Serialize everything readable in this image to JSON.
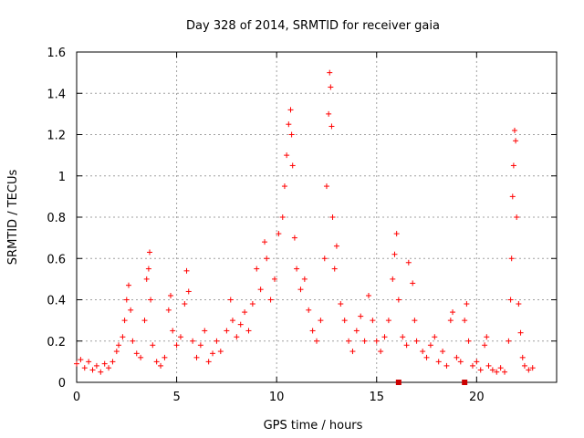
{
  "chart_data": {
    "type": "scatter",
    "title": "Day 328 of 2014, SRMTID for receiver gaia",
    "xlabel": "GPS time / hours",
    "ylabel": "SRMTID / TECUs",
    "xlim": [
      0,
      24
    ],
    "ylim": [
      0,
      1.6
    ],
    "xticks": [
      0,
      5,
      10,
      15,
      20
    ],
    "xtick_labels": [
      "0",
      "5",
      "10",
      "15",
      "20"
    ],
    "yticks": [
      0,
      0.2,
      0.4,
      0.6,
      0.8,
      1.0,
      1.2,
      1.4,
      1.6
    ],
    "ytick_labels": [
      "0",
      "0.2",
      "0.4",
      "0.6",
      "0.8",
      "1",
      "1.2",
      "1.4",
      "1.6"
    ],
    "grid": true,
    "marker": "+",
    "color": "#ff0000",
    "series": [
      {
        "name": "SRMTID",
        "points": [
          [
            0.0,
            0.09
          ],
          [
            0.2,
            0.11
          ],
          [
            0.4,
            0.07
          ],
          [
            0.6,
            0.1
          ],
          [
            0.8,
            0.06
          ],
          [
            1.0,
            0.08
          ],
          [
            1.2,
            0.05
          ],
          [
            1.4,
            0.09
          ],
          [
            1.6,
            0.07
          ],
          [
            1.8,
            0.1
          ],
          [
            2.0,
            0.15
          ],
          [
            2.1,
            0.18
          ],
          [
            2.3,
            0.22
          ],
          [
            2.4,
            0.3
          ],
          [
            2.5,
            0.4
          ],
          [
            2.6,
            0.47
          ],
          [
            2.7,
            0.35
          ],
          [
            2.8,
            0.2
          ],
          [
            3.0,
            0.14
          ],
          [
            3.2,
            0.12
          ],
          [
            3.4,
            0.3
          ],
          [
            3.5,
            0.5
          ],
          [
            3.6,
            0.55
          ],
          [
            3.65,
            0.63
          ],
          [
            3.7,
            0.4
          ],
          [
            3.8,
            0.18
          ],
          [
            4.0,
            0.1
          ],
          [
            4.2,
            0.08
          ],
          [
            4.4,
            0.12
          ],
          [
            4.6,
            0.35
          ],
          [
            4.7,
            0.42
          ],
          [
            4.8,
            0.25
          ],
          [
            5.0,
            0.18
          ],
          [
            5.2,
            0.22
          ],
          [
            5.4,
            0.38
          ],
          [
            5.5,
            0.54
          ],
          [
            5.6,
            0.44
          ],
          [
            5.8,
            0.2
          ],
          [
            6.0,
            0.12
          ],
          [
            6.2,
            0.18
          ],
          [
            6.4,
            0.25
          ],
          [
            6.6,
            0.1
          ],
          [
            6.8,
            0.14
          ],
          [
            7.0,
            0.2
          ],
          [
            7.2,
            0.15
          ],
          [
            7.5,
            0.25
          ],
          [
            7.7,
            0.4
          ],
          [
            7.8,
            0.3
          ],
          [
            8.0,
            0.22
          ],
          [
            8.2,
            0.28
          ],
          [
            8.4,
            0.34
          ],
          [
            8.6,
            0.25
          ],
          [
            8.8,
            0.38
          ],
          [
            9.0,
            0.55
          ],
          [
            9.2,
            0.45
          ],
          [
            9.4,
            0.68
          ],
          [
            9.5,
            0.6
          ],
          [
            9.7,
            0.4
          ],
          [
            9.9,
            0.5
          ],
          [
            10.1,
            0.72
          ],
          [
            10.3,
            0.8
          ],
          [
            10.4,
            0.95
          ],
          [
            10.5,
            1.1
          ],
          [
            10.6,
            1.25
          ],
          [
            10.7,
            1.32
          ],
          [
            10.75,
            1.2
          ],
          [
            10.8,
            1.05
          ],
          [
            10.9,
            0.7
          ],
          [
            11.0,
            0.55
          ],
          [
            11.2,
            0.45
          ],
          [
            11.4,
            0.5
          ],
          [
            11.6,
            0.35
          ],
          [
            11.8,
            0.25
          ],
          [
            12.0,
            0.2
          ],
          [
            12.2,
            0.3
          ],
          [
            12.4,
            0.6
          ],
          [
            12.5,
            0.95
          ],
          [
            12.6,
            1.3
          ],
          [
            12.65,
            1.5
          ],
          [
            12.7,
            1.43
          ],
          [
            12.75,
            1.24
          ],
          [
            12.8,
            0.8
          ],
          [
            12.9,
            0.55
          ],
          [
            13.0,
            0.66
          ],
          [
            13.2,
            0.38
          ],
          [
            13.4,
            0.3
          ],
          [
            13.6,
            0.2
          ],
          [
            13.8,
            0.15
          ],
          [
            14.0,
            0.25
          ],
          [
            14.2,
            0.32
          ],
          [
            14.4,
            0.2
          ],
          [
            14.6,
            0.42
          ],
          [
            14.8,
            0.3
          ],
          [
            15.0,
            0.2
          ],
          [
            15.2,
            0.15
          ],
          [
            15.4,
            0.22
          ],
          [
            15.6,
            0.3
          ],
          [
            15.8,
            0.5
          ],
          [
            15.9,
            0.62
          ],
          [
            16.0,
            0.72
          ],
          [
            16.1,
            0.4
          ],
          [
            16.3,
            0.22
          ],
          [
            16.5,
            0.18
          ],
          [
            16.6,
            0.58
          ],
          [
            16.8,
            0.48
          ],
          [
            16.9,
            0.3
          ],
          [
            17.0,
            0.2
          ],
          [
            17.3,
            0.15
          ],
          [
            17.5,
            0.12
          ],
          [
            17.7,
            0.18
          ],
          [
            17.9,
            0.22
          ],
          [
            18.1,
            0.1
          ],
          [
            18.3,
            0.15
          ],
          [
            18.5,
            0.08
          ],
          [
            18.7,
            0.3
          ],
          [
            18.8,
            0.34
          ],
          [
            19.0,
            0.12
          ],
          [
            19.2,
            0.1
          ],
          [
            19.4,
            0.3
          ],
          [
            19.5,
            0.38
          ],
          [
            19.6,
            0.2
          ],
          [
            19.8,
            0.08
          ],
          [
            20.0,
            0.1
          ],
          [
            20.2,
            0.06
          ],
          [
            20.4,
            0.18
          ],
          [
            20.5,
            0.22
          ],
          [
            20.6,
            0.08
          ],
          [
            20.8,
            0.06
          ],
          [
            21.0,
            0.05
          ],
          [
            21.2,
            0.07
          ],
          [
            21.4,
            0.05
          ],
          [
            21.6,
            0.2
          ],
          [
            21.7,
            0.4
          ],
          [
            21.75,
            0.6
          ],
          [
            21.8,
            0.9
          ],
          [
            21.85,
            1.05
          ],
          [
            21.9,
            1.22
          ],
          [
            21.95,
            1.17
          ],
          [
            22.0,
            0.8
          ],
          [
            22.1,
            0.38
          ],
          [
            22.2,
            0.24
          ],
          [
            22.3,
            0.12
          ],
          [
            22.4,
            0.08
          ],
          [
            22.6,
            0.06
          ],
          [
            22.8,
            0.07
          ]
        ]
      }
    ],
    "gap_markers": [
      16.1,
      19.4
    ]
  }
}
